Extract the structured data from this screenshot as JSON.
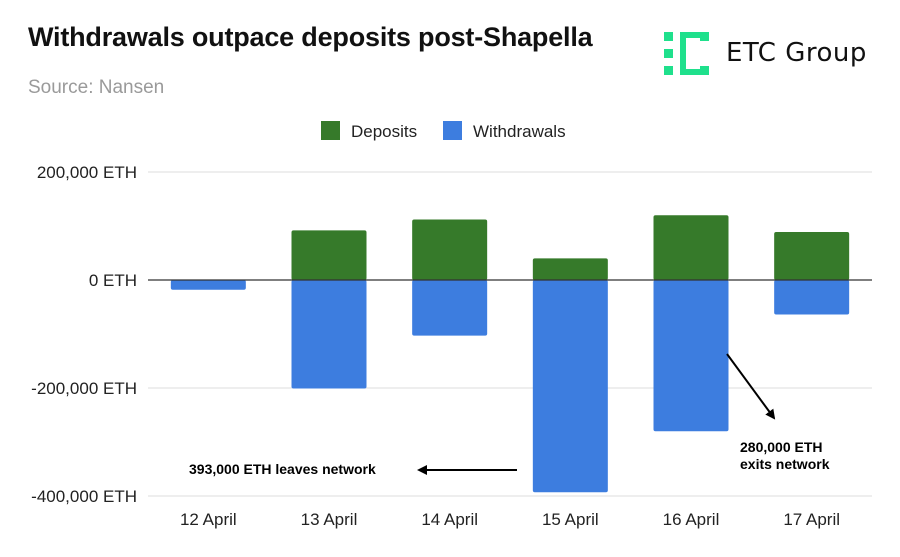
{
  "header": {
    "title": "Withdrawals outpace deposits post-Shapella",
    "source": "Source: Nansen",
    "logo_text": "ETC Group",
    "logo_icon": "etc-group-logo-icon"
  },
  "colors": {
    "deposits": "#367a2a",
    "withdrawals": "#3d7ddf",
    "logo_green": "#1fe08c",
    "gridline": "#dddddd",
    "zero_line": "#333333"
  },
  "chart_data": {
    "type": "bar",
    "stacked": true,
    "title": "Withdrawals outpace deposits post-Shapella",
    "subtitle": "Source: Nansen",
    "categories": [
      "12 April",
      "13 April",
      "14 April",
      "15 April",
      "16 April",
      "17 April"
    ],
    "series": [
      {
        "name": "Deposits",
        "values": [
          0,
          92000,
          112000,
          40000,
          120000,
          89000
        ]
      },
      {
        "name": "Withdrawals",
        "values": [
          -18000,
          -201000,
          -103000,
          -393000,
          -280000,
          -64000
        ]
      }
    ],
    "yticks": [
      {
        "value": 200000,
        "label": "200,000 ETH"
      },
      {
        "value": 0,
        "label": "0 ETH"
      },
      {
        "value": -200000,
        "label": "-200,000 ETH"
      },
      {
        "value": -400000,
        "label": "-400,000 ETH"
      }
    ],
    "ylim": [
      -400000,
      200000
    ],
    "grid": true,
    "legend_position": "top-center",
    "annotations": [
      {
        "lines": [
          "393,000 ETH leaves network"
        ],
        "category": "15 April"
      },
      {
        "lines": [
          "280,000 ETH",
          "exits network"
        ],
        "category": "16 April"
      }
    ]
  }
}
